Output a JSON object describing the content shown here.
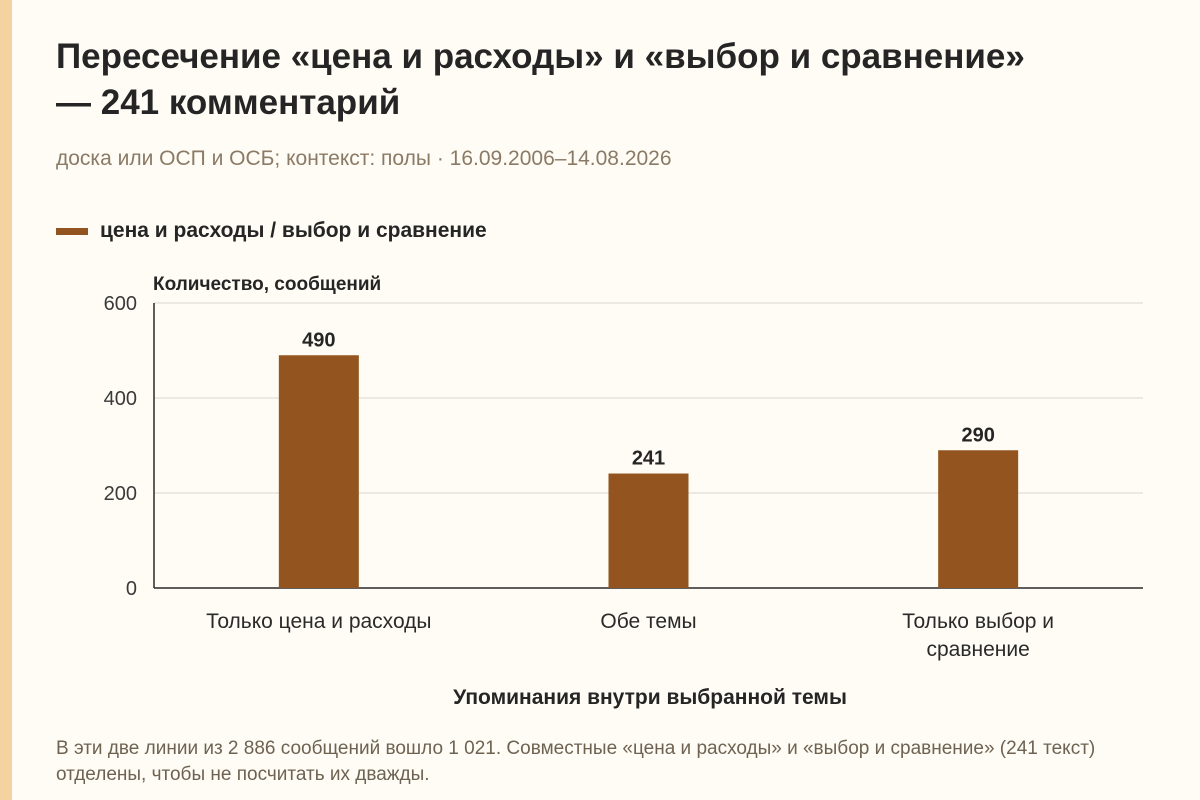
{
  "colors": {
    "background": "#fefcf4",
    "accent_strip": "#f5d3a1",
    "bar": "#93541f",
    "subtitle_text": "#8b7a66",
    "note_text": "#6e6252",
    "grid": "#d9d6cc",
    "axis": "#2a2a2a"
  },
  "chart_data": {
    "type": "bar",
    "title": "Пересечение «цена и расходы» и «выбор и сравнение» — 241 комментарий",
    "subtitle": "доска или ОСП и ОСБ; контекст: полы · 16.09.2006–14.08.2026",
    "xlabel": "Упоминания внутри выбранной темы",
    "ylabel": "Количество, сообщений",
    "categories": [
      [
        "Только цена и расходы"
      ],
      [
        "Обе темы"
      ],
      [
        "Только выбор и",
        "сравнение"
      ]
    ],
    "series": [
      {
        "name": "цена и расходы / выбор и сравнение",
        "values": [
          490,
          241,
          290
        ]
      }
    ],
    "ylim": [
      0,
      600
    ],
    "yticks": [
      "0",
      "200",
      "400",
      "600"
    ],
    "data_labels": [
      "490",
      "241",
      "290"
    ],
    "grid": true,
    "legend_position": "top-left"
  },
  "note": "В эти две линии из 2 886 сообщений вошло 1 021. Совместные «цена и расходы» и «выбор и сравнение» (241 текст) отделены, чтобы не посчитать их дважды."
}
